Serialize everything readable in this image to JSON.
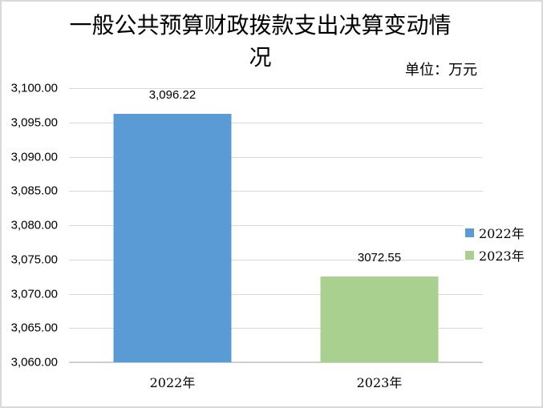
{
  "title": {
    "line1": "一般公共预算财政拨款支出决算变动情",
    "line2": "况"
  },
  "chart_data": {
    "type": "bar",
    "title": "一般公共预算财政拨款支出决算变动情况",
    "unit_label": "单位：万元",
    "categories": [
      "2022年",
      "2023年"
    ],
    "series": [
      {
        "name": "2022年",
        "value": 3096.22,
        "data_label": "3,096.22",
        "color": "#5B9BD5"
      },
      {
        "name": "2023年",
        "value": 3072.55,
        "data_label": "3072.55",
        "color": "#A9D08E"
      }
    ],
    "y_axis": {
      "min": 3060,
      "max": 3100,
      "step": 5,
      "tick_labels": [
        "3,100.00",
        "3,095.00",
        "3,090.00",
        "3,085.00",
        "3,080.00",
        "3,075.00",
        "3,070.00",
        "3,065.00",
        "3,060.00"
      ]
    },
    "grid": true,
    "legend_position": "right",
    "colors": {
      "gridline": "#D9D9D9",
      "axis_line": "#D0CECE",
      "border": "#D9D9D9",
      "background": "#FFFFFF",
      "text": "#000000"
    }
  }
}
